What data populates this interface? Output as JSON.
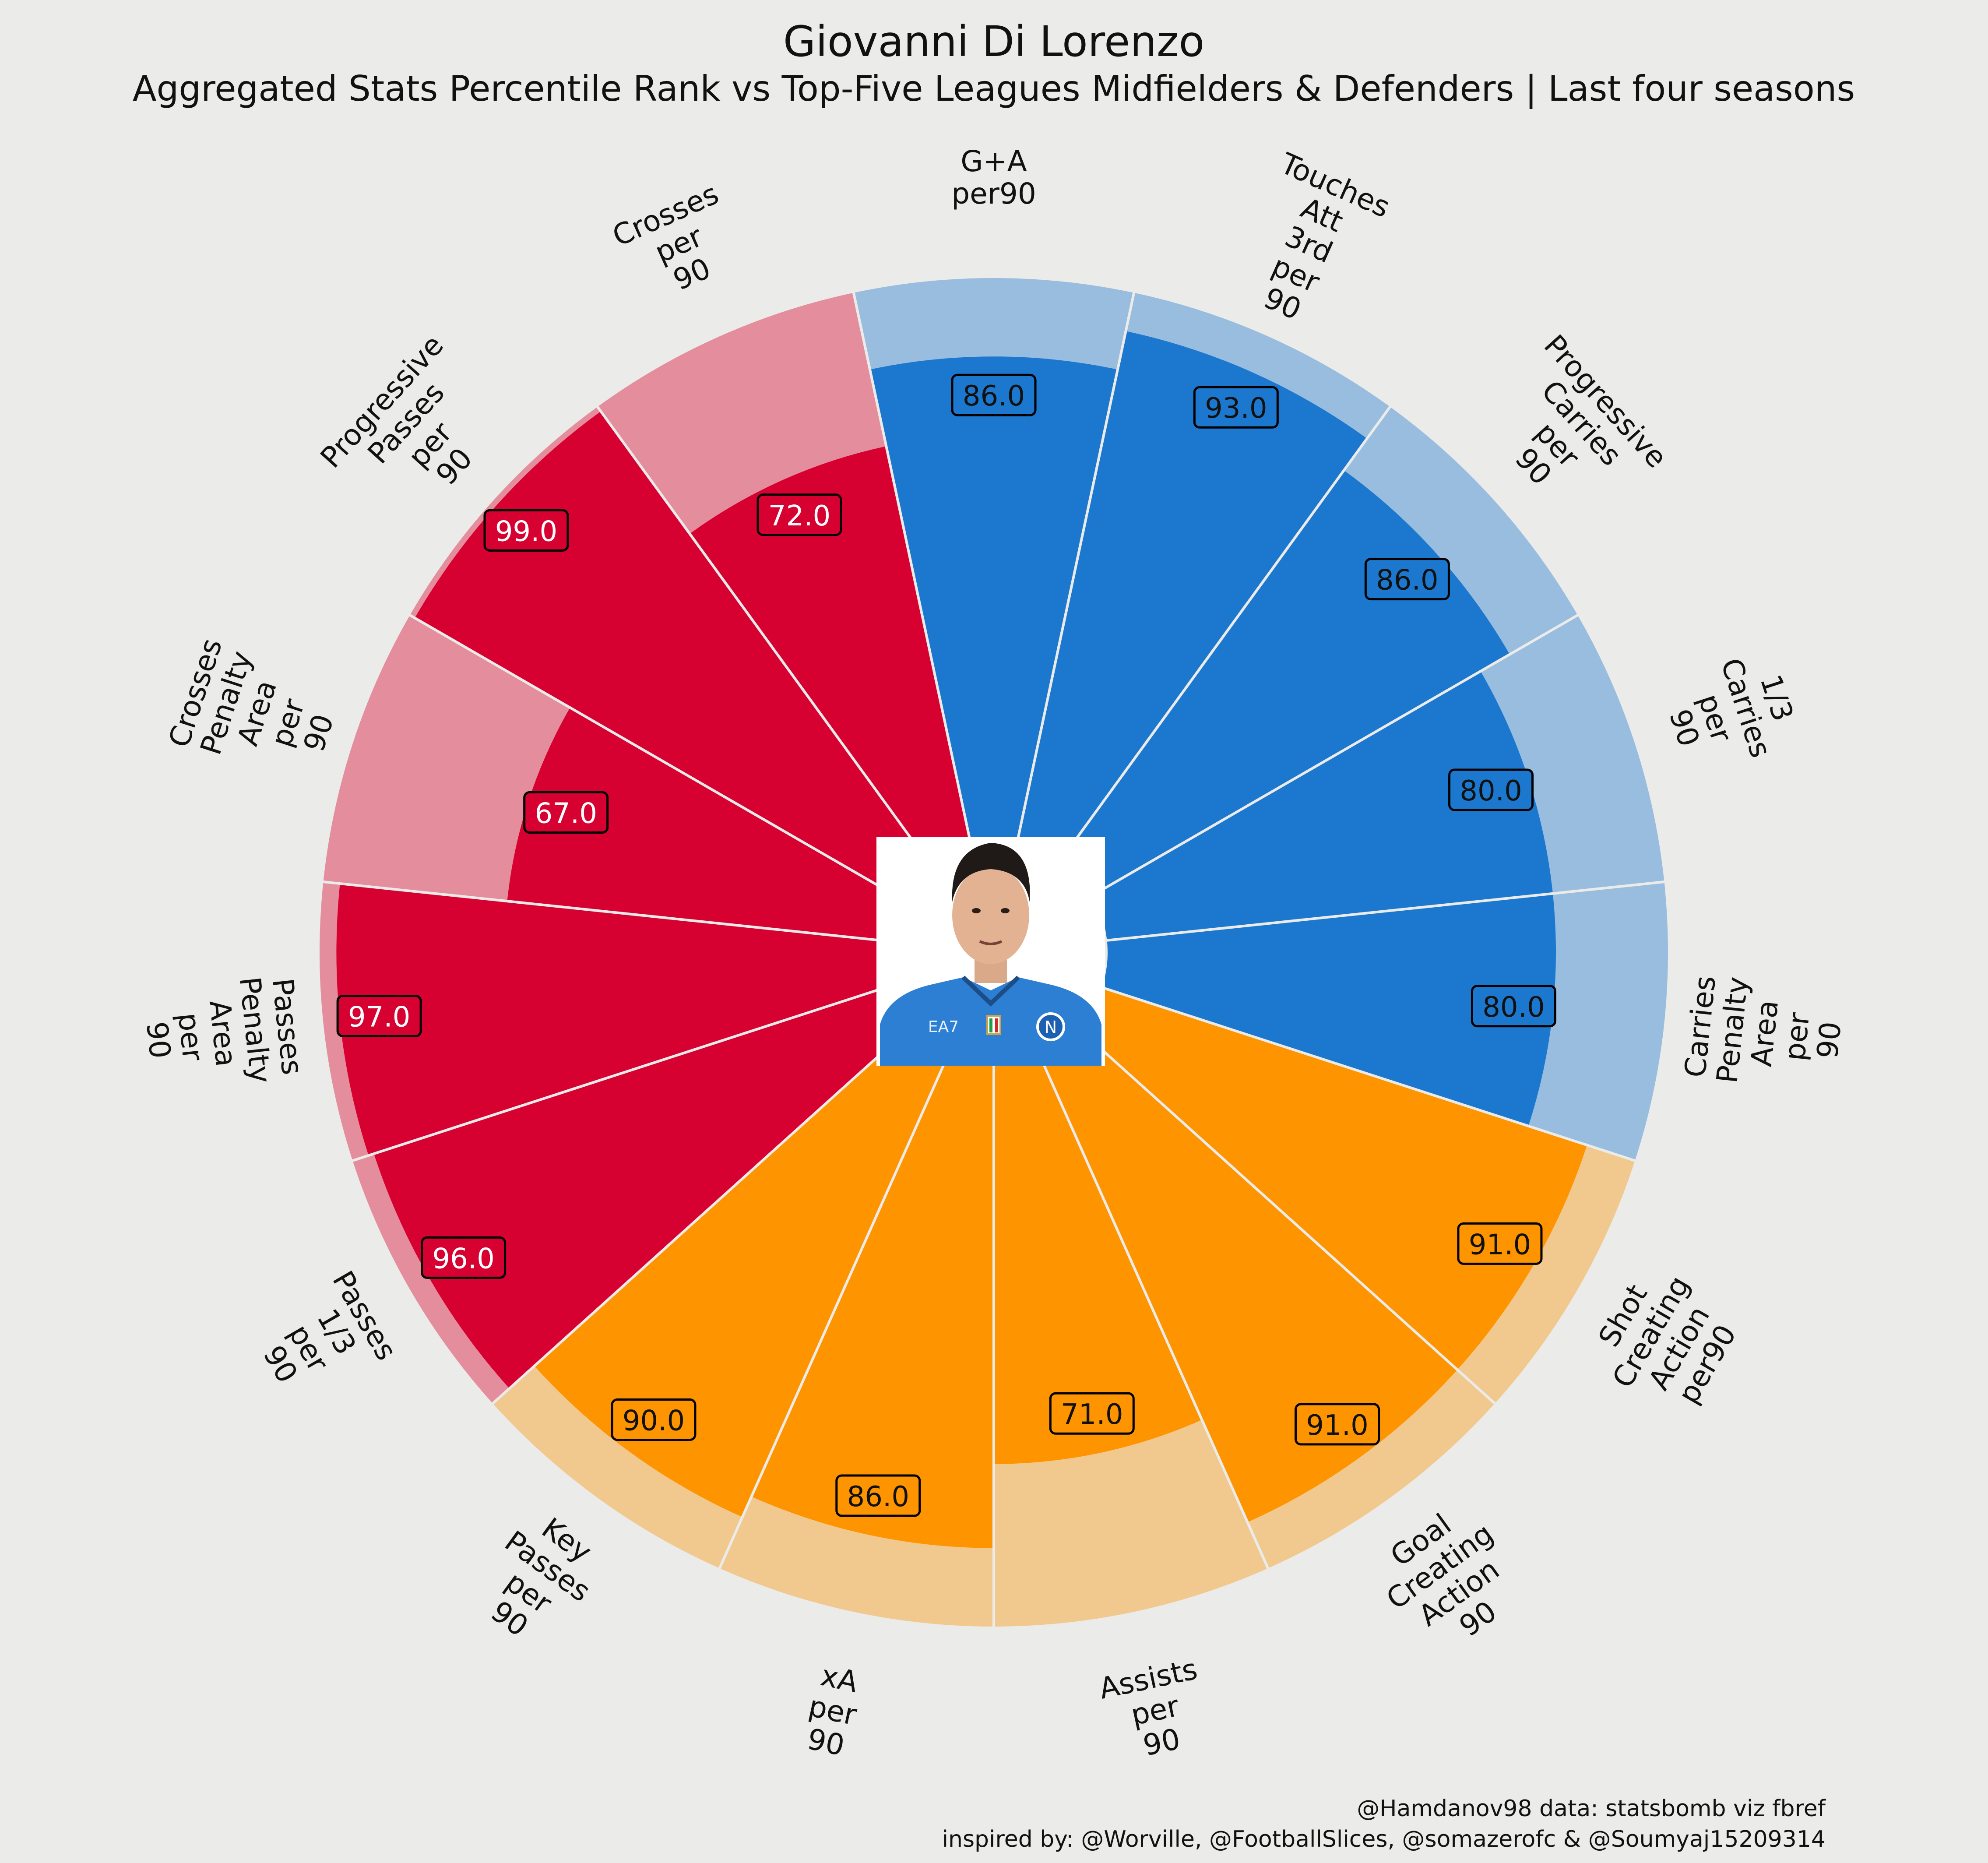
{
  "title": "Giovanni Di Lorenzo",
  "subtitle": "Aggregated Stats Percentile Rank vs Top-Five Leagues Midfielders & Defenders | Last four seasons",
  "footer": {
    "line1": "@Hamdanov98 data: statsbomb viz fbref",
    "line2": "inspired by: @Worville, @FootballSlices, @somazerofc & @Soumyaj15209314"
  },
  "colors": {
    "background": "#ebebe9",
    "attacking_bar": "#1c78ce",
    "attacking_bg": "#99bddf",
    "creation_bar": "#fd9400",
    "creation_bg": "#f1c98f",
    "passing_bar": "#d70131",
    "passing_bg": "#e48e9d",
    "separator": "#ebebe9",
    "outline": "#000000"
  },
  "chart_data": {
    "type": "polar-bar",
    "rlim": [
      0,
      100
    ],
    "categories": [
      "G+A per90",
      "Touches Att 3rd per 90",
      "Progressive Carries per 90",
      "1/3 Carries per 90",
      "Carries Penalty Area per 90",
      "Shot Creating Action per90",
      "Goal Creating Action 90",
      "Assists per 90",
      "xA per 90",
      "Key Passes per 90",
      "Passes 1/3 per 90",
      "Passes Penalty Area per 90",
      "Crosses Penalty Area per 90",
      "Progressive Passes per 90",
      "Crosses per 90"
    ],
    "values": [
      86.0,
      93.0,
      86.0,
      80.0,
      80.0,
      91.0,
      91.0,
      71.0,
      86.0,
      90.0,
      96.0,
      97.0,
      67.0,
      99.0,
      72.0
    ],
    "value_labels": [
      "86.0",
      "93.0",
      "86.0",
      "80.0",
      "80.0",
      "91.0",
      "91.0",
      "71.0",
      "86.0",
      "90.0",
      "96.0",
      "97.0",
      "67.0",
      "99.0",
      "72.0"
    ],
    "groups": [
      "attacking",
      "attacking",
      "attacking",
      "attacking",
      "attacking",
      "creation",
      "creation",
      "creation",
      "creation",
      "creation",
      "passing",
      "passing",
      "passing",
      "passing",
      "passing"
    ],
    "label_lines": [
      [
        "G+A",
        "per90"
      ],
      [
        "Touches",
        "Att",
        "3rd",
        "per",
        "90"
      ],
      [
        "Progressive",
        "Carries",
        "per",
        "90"
      ],
      [
        "1/3",
        "Carries",
        "per",
        "90"
      ],
      [
        "Carries",
        "Penalty",
        "Area",
        "per",
        "90"
      ],
      [
        "Shot",
        "Creating",
        "Action",
        "per90"
      ],
      [
        "Goal",
        "Creating",
        "Action",
        "90"
      ],
      [
        "Assists",
        "per",
        "90"
      ],
      [
        "xA",
        "per",
        "90"
      ],
      [
        "Key",
        "Passes",
        "per",
        "90"
      ],
      [
        "Passes",
        "1/3",
        "per",
        "90"
      ],
      [
        "Passes",
        "Penalty",
        "Area",
        "per",
        "90"
      ],
      [
        "Crosses",
        "Penalty",
        "Area",
        "per",
        "90"
      ],
      [
        "Progressive",
        "Passes",
        "per",
        "90"
      ],
      [
        "Crosses",
        "per",
        "90"
      ]
    ]
  },
  "photo": {
    "badge_left": "EA7",
    "badge_right": "N"
  }
}
